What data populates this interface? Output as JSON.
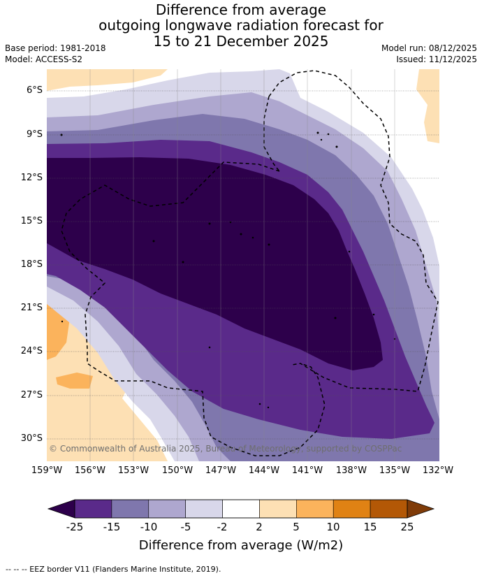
{
  "title": {
    "line1": "Difference from average",
    "line2": "outgoing longwave radiation forecast for",
    "line3": "15 to 21 December 2025"
  },
  "meta": {
    "base_period": "Base period: 1981-2018",
    "model": "Model: ACCESS-S2",
    "model_run": "Model run: 08/12/2025",
    "issued": "Issued: 11/12/2025"
  },
  "map": {
    "copyright": "© Commonwealth of Australia 2025, Bureau of Meteorology, supported by COSPPac",
    "lat_labels": [
      "6°S",
      "9°S",
      "12°S",
      "15°S",
      "18°S",
      "21°S",
      "24°S",
      "27°S",
      "30°S"
    ],
    "lon_labels": [
      "159°W",
      "156°W",
      "153°W",
      "150°W",
      "147°W",
      "144°W",
      "141°W",
      "138°W",
      "135°W",
      "132°W"
    ]
  },
  "colorbar": {
    "ticks": [
      "-25",
      "-15",
      "-10",
      "-5",
      "-2",
      "2",
      "5",
      "10",
      "15",
      "25"
    ],
    "colors": [
      "#5a2a8a",
      "#7f77ad",
      "#aea7cf",
      "#d8d7ea",
      "#ffffff",
      "#fde0b4",
      "#fbb35c",
      "#e08214",
      "#b35806"
    ],
    "under_color": "#2d004b",
    "over_color": "#7f3b08",
    "label": "Difference from average (W/m2)"
  },
  "footer": "--  --  -- EEZ border V11 (Flanders Marine Institute, 2019)."
}
